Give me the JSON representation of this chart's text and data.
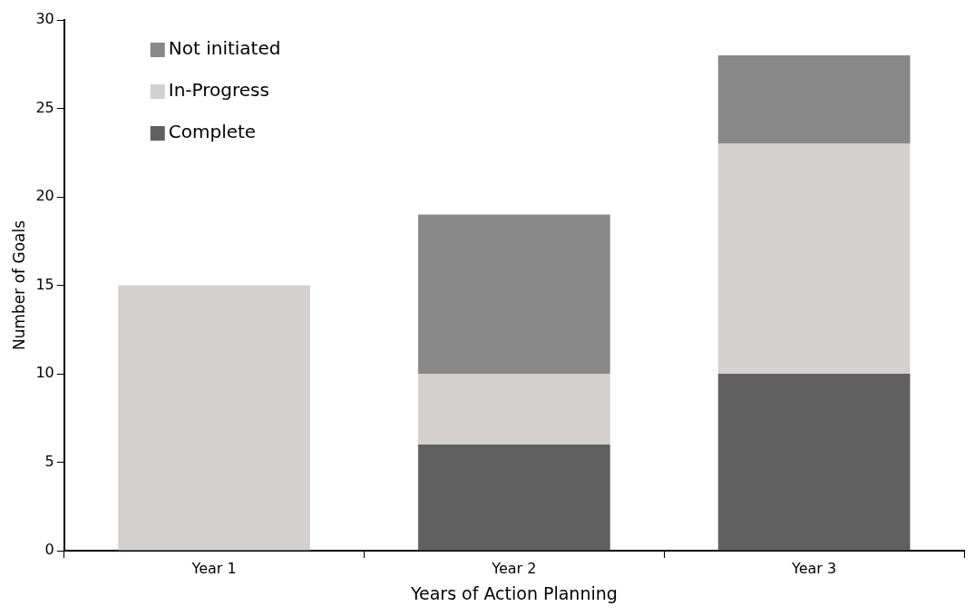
{
  "chart_data": {
    "type": "bar",
    "stacked": true,
    "xlabel": "Years of Action Planning",
    "ylabel": "Number of Goals",
    "categories": [
      "Year 1",
      "Year 2",
      "Year 3"
    ],
    "series": [
      {
        "name": "Complete",
        "color": "#606060",
        "values": [
          0,
          6,
          10
        ]
      },
      {
        "name": "In-Progress",
        "color": "#d4d0d0",
        "values": [
          15,
          4,
          13
        ]
      },
      {
        "name": "Not initiated",
        "color": "#888888",
        "values": [
          0,
          9,
          5
        ]
      }
    ],
    "ylim": [
      0,
      30
    ],
    "yticks": [
      0,
      5,
      10,
      15,
      20,
      25,
      30
    ],
    "grid": false,
    "legend": "top left"
  }
}
